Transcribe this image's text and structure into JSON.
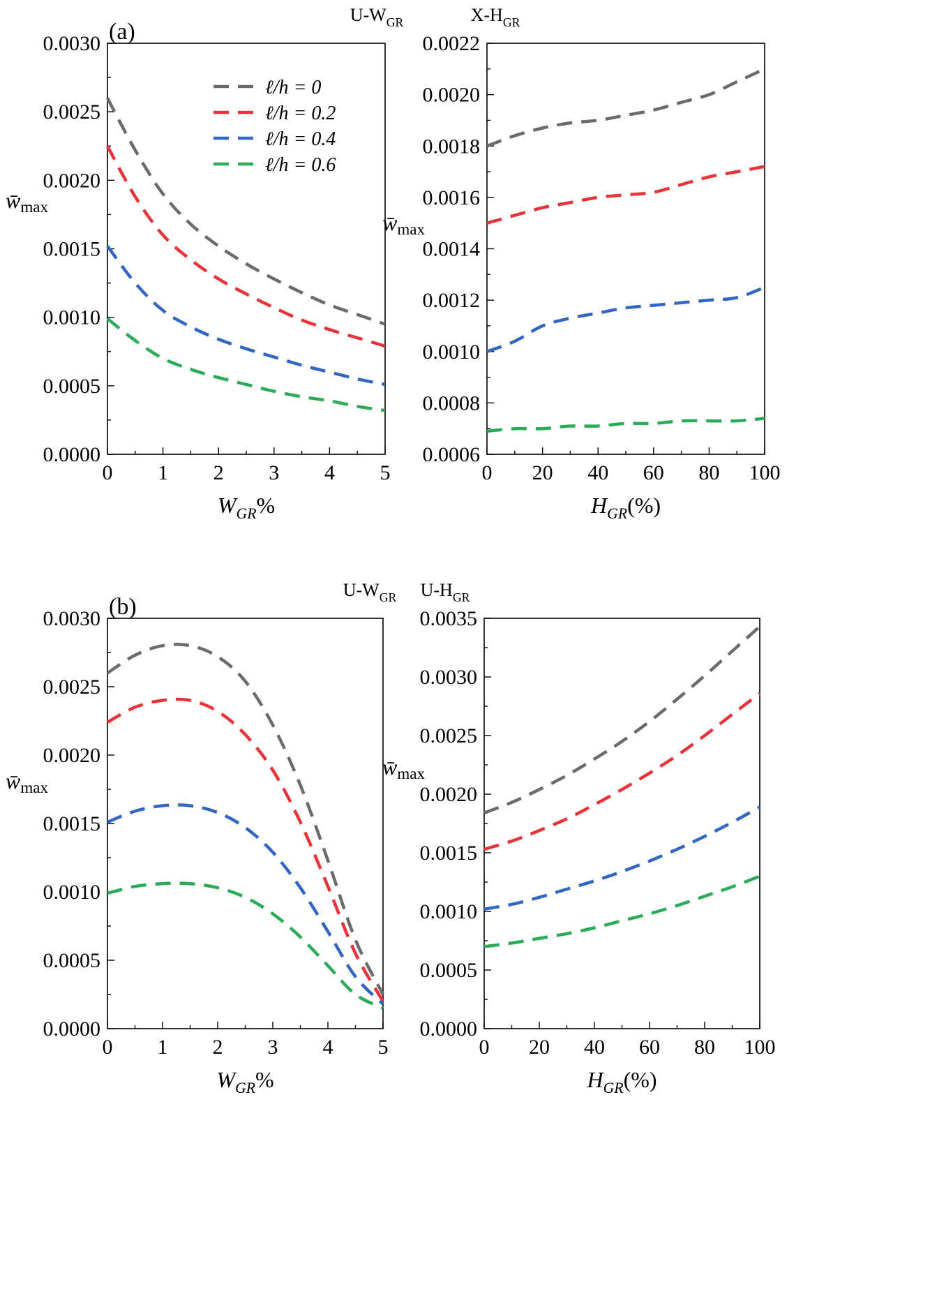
{
  "chart_data": [
    {
      "panel": "(a)",
      "type": "line",
      "title": "U-W_GR",
      "xlabel": "W_GR%",
      "ylabel": "w̄_max",
      "xlim": [
        0,
        5
      ],
      "ylim": [
        0,
        0.003
      ],
      "xticks": [
        "0",
        "1",
        "2",
        "3",
        "4",
        "5"
      ],
      "yticks": [
        "0.0000",
        "0.0005",
        "0.0010",
        "0.0015",
        "0.0020",
        "0.0025",
        "0.0030"
      ],
      "x": [
        0,
        0.5,
        1,
        1.5,
        2,
        2.5,
        3,
        3.5,
        4,
        4.5,
        5
      ],
      "series": [
        {
          "name": "ℓ/h = 0",
          "color": "#6b6b6b",
          "values": [
            0.0026,
            0.00222,
            0.0019,
            0.00168,
            0.00152,
            0.00139,
            0.00128,
            0.00118,
            0.00109,
            0.00102,
            0.00095
          ]
        },
        {
          "name": "ℓ/h = 0.2",
          "color": "#e8333a",
          "values": [
            0.00225,
            0.00188,
            0.0016,
            0.00142,
            0.00128,
            0.00117,
            0.00107,
            0.00098,
            0.00091,
            0.00085,
            0.00079
          ]
        },
        {
          "name": "ℓ/h = 0.4",
          "color": "#3366c0",
          "values": [
            0.00152,
            0.00125,
            0.00105,
            0.00093,
            0.00084,
            0.00077,
            0.00071,
            0.00065,
            0.0006,
            0.00055,
            0.00051
          ]
        },
        {
          "name": "ℓ/h = 0.6",
          "color": "#2bab57",
          "values": [
            0.00099,
            0.00083,
            0.0007,
            0.00062,
            0.00056,
            0.00051,
            0.00046,
            0.00042,
            0.00039,
            0.00035,
            0.00032
          ]
        }
      ]
    },
    {
      "panel": "",
      "type": "line",
      "title": "X-H_GR",
      "xlabel": "H_GR(%)",
      "ylabel": "w̄_max",
      "xlim": [
        0,
        100
      ],
      "ylim": [
        0.0006,
        0.0022
      ],
      "xticks": [
        "0",
        "20",
        "40",
        "60",
        "80",
        "100"
      ],
      "yticks": [
        "0.0006",
        "0.0008",
        "0.0010",
        "0.0012",
        "0.0014",
        "0.0016",
        "0.0018",
        "0.0020",
        "0.0022"
      ],
      "x": [
        0,
        10,
        20,
        30,
        40,
        50,
        60,
        70,
        80,
        90,
        100
      ],
      "series": [
        {
          "name": "ℓ/h = 0",
          "color": "#6b6b6b",
          "values": [
            0.0018,
            0.00184,
            0.00187,
            0.00189,
            0.0019,
            0.00192,
            0.00194,
            0.00197,
            0.002,
            0.00205,
            0.0021
          ]
        },
        {
          "name": "ℓ/h = 0.2",
          "color": "#e8333a",
          "values": [
            0.0015,
            0.00153,
            0.00156,
            0.00158,
            0.0016,
            0.00161,
            0.00162,
            0.00165,
            0.00168,
            0.0017,
            0.00172
          ]
        },
        {
          "name": "ℓ/h = 0.4",
          "color": "#3366c0",
          "values": [
            0.001,
            0.00104,
            0.0011,
            0.00113,
            0.00115,
            0.00117,
            0.00118,
            0.00119,
            0.0012,
            0.00121,
            0.00125
          ]
        },
        {
          "name": "ℓ/h = 0.6",
          "color": "#2bab57",
          "values": [
            0.00069,
            0.0007,
            0.0007,
            0.00071,
            0.00071,
            0.00072,
            0.00072,
            0.00073,
            0.00073,
            0.00073,
            0.00074
          ]
        }
      ]
    },
    {
      "panel": "(b)",
      "type": "line",
      "title": "U-W_GR",
      "xlabel": "W_GR%",
      "ylabel": "w̄_max",
      "xlim": [
        0,
        5
      ],
      "ylim": [
        0,
        0.003
      ],
      "xticks": [
        "0",
        "1",
        "2",
        "3",
        "4",
        "5"
      ],
      "yticks": [
        "0.0000",
        "0.0005",
        "0.0010",
        "0.0015",
        "0.0020",
        "0.0025",
        "0.0030"
      ],
      "x": [
        0,
        0.5,
        1,
        1.5,
        2,
        2.5,
        3,
        3.5,
        4,
        4.5,
        5
      ],
      "series": [
        {
          "name": "ℓ/h = 0",
          "color": "#6b6b6b",
          "values": [
            0.0026,
            0.00273,
            0.0028,
            0.0028,
            0.00272,
            0.00254,
            0.00222,
            0.00178,
            0.00123,
            0.00065,
            0.00025
          ]
        },
        {
          "name": "ℓ/h = 0.2",
          "color": "#e8333a",
          "values": [
            0.00224,
            0.00235,
            0.0024,
            0.0024,
            0.00232,
            0.00215,
            0.00189,
            0.00151,
            0.00104,
            0.00055,
            0.0002
          ]
        },
        {
          "name": "ℓ/h = 0.4",
          "color": "#3366c0",
          "values": [
            0.00151,
            0.00159,
            0.00163,
            0.00163,
            0.00158,
            0.00147,
            0.00129,
            0.00103,
            0.00071,
            0.00038,
            0.00018
          ]
        },
        {
          "name": "ℓ/h = 0.6",
          "color": "#2bab57",
          "values": [
            0.00099,
            0.00104,
            0.00106,
            0.00106,
            0.00103,
            0.00096,
            0.00084,
            0.00067,
            0.00046,
            0.00025,
            0.00015
          ]
        }
      ]
    },
    {
      "panel": "",
      "type": "line",
      "title": "U-H_GR",
      "xlabel": "H_GR(%)",
      "ylabel": "w̄_max",
      "xlim": [
        0,
        100
      ],
      "ylim": [
        0,
        0.0035
      ],
      "xticks": [
        "0",
        "20",
        "40",
        "60",
        "80",
        "100"
      ],
      "yticks": [
        "0.0000",
        "0.0005",
        "0.0010",
        "0.0015",
        "0.0020",
        "0.0025",
        "0.0030",
        "0.0035"
      ],
      "x": [
        0,
        10,
        20,
        30,
        40,
        50,
        60,
        70,
        80,
        90,
        100
      ],
      "series": [
        {
          "name": "ℓ/h = 0",
          "color": "#6b6b6b",
          "values": [
            0.00184,
            0.00193,
            0.00204,
            0.00216,
            0.0023,
            0.00245,
            0.00262,
            0.00281,
            0.00301,
            0.00322,
            0.00343
          ]
        },
        {
          "name": "ℓ/h = 0.2",
          "color": "#e8333a",
          "values": [
            0.00153,
            0.0016,
            0.00169,
            0.00179,
            0.00191,
            0.00204,
            0.00218,
            0.00233,
            0.0025,
            0.00268,
            0.00286
          ]
        },
        {
          "name": "ℓ/h = 0.4",
          "color": "#3366c0",
          "values": [
            0.00102,
            0.00106,
            0.00112,
            0.00119,
            0.00126,
            0.00134,
            0.00143,
            0.00153,
            0.00164,
            0.00176,
            0.00189
          ]
        },
        {
          "name": "ℓ/h = 0.6",
          "color": "#2bab57",
          "values": [
            0.0007,
            0.00073,
            0.00077,
            0.00081,
            0.00086,
            0.00092,
            0.00098,
            0.00105,
            0.00113,
            0.00121,
            0.0013
          ]
        }
      ]
    }
  ]
}
